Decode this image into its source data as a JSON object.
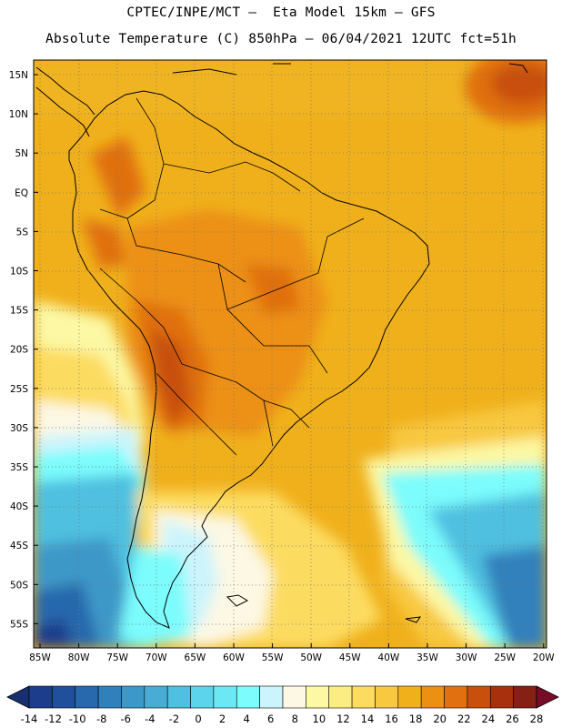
{
  "header": {
    "line1": "CPTEC/INPE/MCT –  Eta Model 15km – GFS",
    "line2": "Absolute Temperature (C) 850hPa – 06/04/2021 12UTC fct=51h"
  },
  "map": {
    "lon_range": [
      -86,
      -19
    ],
    "lat_range": [
      -59,
      17
    ],
    "lon_ticks": [
      "85W",
      "80W",
      "75W",
      "70W",
      "65W",
      "60W",
      "55W",
      "50W",
      "45W",
      "40W",
      "35W",
      "30W",
      "25W",
      "20W"
    ],
    "lat_ticks": [
      "15N",
      "10N",
      "5N",
      "EQ",
      "5S",
      "10S",
      "15S",
      "20S",
      "25S",
      "30S",
      "35S",
      "40S",
      "45S",
      "50S",
      "55S"
    ]
  },
  "colorbar": {
    "labels": [
      "-14",
      "-12",
      "-10",
      "-8",
      "-6",
      "-4",
      "-2",
      "0",
      "2",
      "4",
      "6",
      "8",
      "10",
      "12",
      "14",
      "16",
      "18",
      "20",
      "22",
      "24",
      "26",
      "28"
    ],
    "colors": [
      "#1c3c8c",
      "#20509c",
      "#2868ac",
      "#3080bc",
      "#3c98c8",
      "#48acd4",
      "#50c0e0",
      "#5cd4ec",
      "#6ce8f4",
      "#7cfcfc",
      "#ccf4fc",
      "#fcf8e4",
      "#fcf8a4",
      "#fcec84",
      "#fcdc60",
      "#f8c840",
      "#f0b01c",
      "#ec9014",
      "#e07010",
      "#c8500c",
      "#a8300c",
      "#842014"
    ],
    "low_end_color": "#183070",
    "high_end_color": "#780c28"
  }
}
